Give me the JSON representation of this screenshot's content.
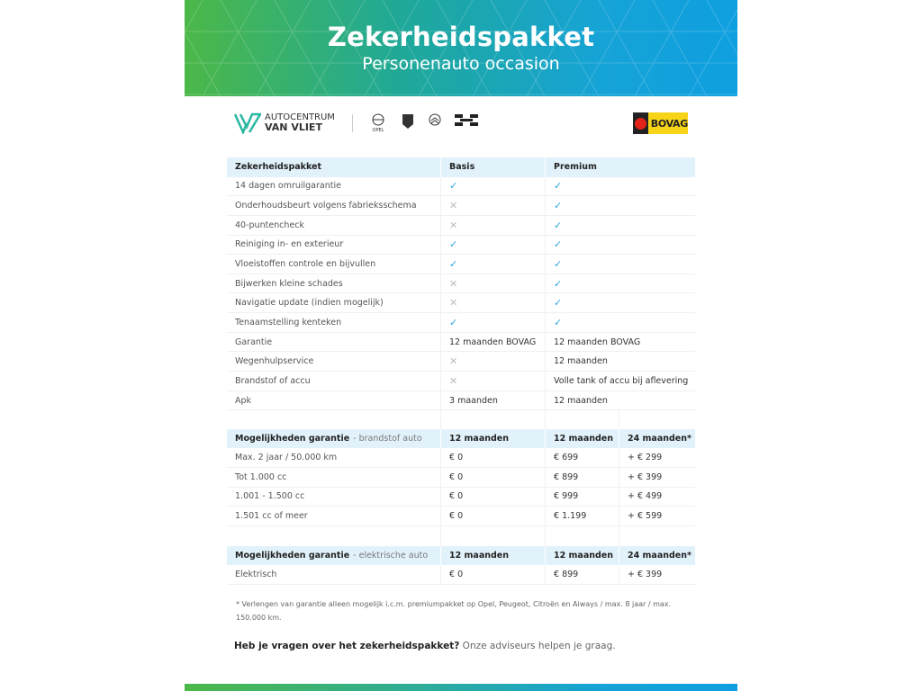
{
  "header": {
    "title": "Zekerheidspakket",
    "subtitle": "Personenauto occasion"
  },
  "logos": {
    "dealer_line1": "AUTOCENTRUM",
    "dealer_line2": "VAN VLIET",
    "brands": [
      "OPEL",
      "PEUGEOT",
      "CITROËN",
      "AIWAYS"
    ],
    "bovag": "BOVAG"
  },
  "colors": {
    "check": "#2aa5dc",
    "header_row": "#e2f2fb",
    "gradient_start": "#4cb848",
    "gradient_end": "#0f9fe0"
  },
  "package_table": {
    "headers": [
      "Zekerheidspakket",
      "Basis",
      "Premium"
    ],
    "rows": [
      {
        "label": "14 dagen omruilgarantie",
        "basis": "check",
        "premium": "check"
      },
      {
        "label": "Onderhoudsbeurt volgens fabrieksschema",
        "basis": "cross",
        "premium": "check"
      },
      {
        "label": "40-puntencheck",
        "basis": "cross",
        "premium": "check"
      },
      {
        "label": "Reiniging in- en exterieur",
        "basis": "check",
        "premium": "check"
      },
      {
        "label": "Vloeistoffen controle en bijvullen",
        "basis": "check",
        "premium": "check"
      },
      {
        "label": "Bijwerken kleine schades",
        "basis": "cross",
        "premium": "check"
      },
      {
        "label": "Navigatie update (indien mogelijk)",
        "basis": "cross",
        "premium": "check"
      },
      {
        "label": "Tenaamstelling kenteken",
        "basis": "check",
        "premium": "check"
      },
      {
        "label": "Garantie",
        "basis": "12 maanden BOVAG",
        "premium": "12 maanden BOVAG"
      },
      {
        "label": "Wegenhulpservice",
        "basis": "cross",
        "premium": "12 maanden"
      },
      {
        "label": "Brandstof of accu",
        "basis": "cross",
        "premium": "Volle tank of accu bij aflevering"
      },
      {
        "label": "Apk",
        "basis": "3 maanden",
        "premium": "12 maanden"
      }
    ]
  },
  "fuel_table": {
    "title": "Mogelijkheden garantie",
    "subtitle": "- brandstof auto",
    "headers": [
      "12 maanden",
      "12 maanden",
      "24 maanden*"
    ],
    "rows": [
      [
        "Max. 2 jaar / 50.000 km",
        "€ 0",
        "€ 699",
        "+ € 299"
      ],
      [
        "Tot 1.000 cc",
        "€ 0",
        "€ 899",
        "+ € 399"
      ],
      [
        "1.001 - 1.500 cc",
        "€ 0",
        "€ 999",
        "+ € 499"
      ],
      [
        "1.501 cc of meer",
        "€ 0",
        "€ 1.199",
        "+ € 599"
      ]
    ]
  },
  "electric_table": {
    "title": "Mogelijkheden garantie",
    "subtitle": "- elektrische auto",
    "headers": [
      "12 maanden",
      "12 maanden",
      "24 maanden*"
    ],
    "rows": [
      [
        "Elektrisch",
        "€ 0",
        "€ 899",
        "+ € 399"
      ]
    ]
  },
  "footnote": "* Verlengen van garantie alleen mogelijk i.c.m. premiumpakket op Opel, Peugeot, Citroën en Aiways / max. 8 jaar / max. 150.000 km.",
  "question": {
    "bold": "Heb je vragen over het zekerheidspakket?",
    "rest": " Onze adviseurs helpen je graag."
  }
}
